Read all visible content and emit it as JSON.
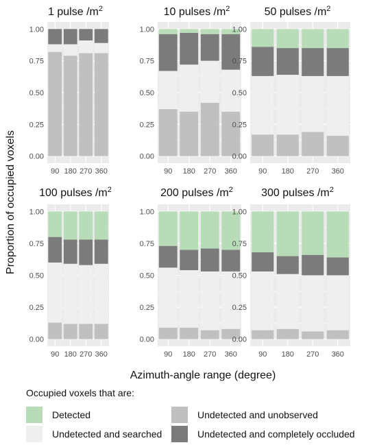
{
  "colors": {
    "detected": "#b8dcb8",
    "searched": "#efefef",
    "unobserved": "#c0c0c0",
    "occluded": "#7b7b7b",
    "panel_background": "#ebebeb",
    "grid": "#ffffff"
  },
  "figure": {
    "ylabel": "Proportion of occupied voxels",
    "xlabel": "Azimuth-angle range (degree)"
  },
  "legend": {
    "title": "Occupied voxels that are:",
    "items": [
      {
        "label": "Detected",
        "color": "#b8dcb8"
      },
      {
        "label": "Undetected and unobserved",
        "color": "#c0c0c0"
      },
      {
        "label": "Undetected and searched",
        "color": "#efefef"
      },
      {
        "label": "Undetected and completely occluded",
        "color": "#7b7b7b"
      }
    ]
  },
  "chart_data": [
    {
      "type": "bar",
      "stacked": true,
      "title": "1 pulse /m",
      "title_sup": "2",
      "categories": [
        "90",
        "180",
        "270",
        "360"
      ],
      "yticks": [
        "0.00",
        "0.25",
        "0.50",
        "0.75",
        "1.00"
      ],
      "ylim": [
        0,
        1
      ],
      "series": [
        {
          "key": "unobserved",
          "values": [
            0.82,
            0.79,
            0.81,
            0.81
          ]
        },
        {
          "key": "searched",
          "values": [
            0.06,
            0.09,
            0.1,
            0.08
          ]
        },
        {
          "key": "occluded",
          "values": [
            0.12,
            0.12,
            0.09,
            0.11
          ]
        },
        {
          "key": "detected",
          "values": [
            0.0,
            0.0,
            0.0,
            0.0
          ]
        }
      ]
    },
    {
      "type": "bar",
      "stacked": true,
      "title": "10 pulses /m",
      "title_sup": "2",
      "categories": [
        "90",
        "180",
        "270",
        "360"
      ],
      "yticks": [
        "0.00",
        "0.25",
        "0.50",
        "0.75",
        "1.00"
      ],
      "ylim": [
        0,
        1
      ],
      "series": [
        {
          "key": "unobserved",
          "values": [
            0.37,
            0.35,
            0.42,
            0.35
          ]
        },
        {
          "key": "searched",
          "values": [
            0.3,
            0.37,
            0.33,
            0.33
          ]
        },
        {
          "key": "occluded",
          "values": [
            0.29,
            0.25,
            0.21,
            0.28
          ]
        },
        {
          "key": "detected",
          "values": [
            0.04,
            0.03,
            0.04,
            0.04
          ]
        }
      ]
    },
    {
      "type": "bar",
      "stacked": true,
      "title": "50 pulses /m",
      "title_sup": "2",
      "categories": [
        "90",
        "180",
        "270",
        "360"
      ],
      "yticks": [
        "0.00",
        "0.25",
        "0.50",
        "0.75",
        "1.00"
      ],
      "ylim": [
        0,
        1
      ],
      "series": [
        {
          "key": "unobserved",
          "values": [
            0.17,
            0.17,
            0.19,
            0.16
          ]
        },
        {
          "key": "searched",
          "values": [
            0.46,
            0.47,
            0.44,
            0.47
          ]
        },
        {
          "key": "occluded",
          "values": [
            0.23,
            0.21,
            0.22,
            0.22
          ]
        },
        {
          "key": "detected",
          "values": [
            0.14,
            0.15,
            0.15,
            0.15
          ]
        }
      ]
    },
    {
      "type": "bar",
      "stacked": true,
      "title": "100 pulses /m",
      "title_sup": "2",
      "categories": [
        "90",
        "180",
        "270",
        "360"
      ],
      "yticks": [
        "0.00",
        "0.25",
        "0.50",
        "0.75",
        "1.00"
      ],
      "ylim": [
        0,
        1
      ],
      "series": [
        {
          "key": "unobserved",
          "values": [
            0.13,
            0.12,
            0.12,
            0.12
          ]
        },
        {
          "key": "searched",
          "values": [
            0.47,
            0.47,
            0.46,
            0.47
          ]
        },
        {
          "key": "occluded",
          "values": [
            0.2,
            0.19,
            0.2,
            0.19
          ]
        },
        {
          "key": "detected",
          "values": [
            0.2,
            0.22,
            0.22,
            0.22
          ]
        }
      ]
    },
    {
      "type": "bar",
      "stacked": true,
      "title": "200 pulses /m",
      "title_sup": "2",
      "categories": [
        "90",
        "180",
        "270",
        "360"
      ],
      "yticks": [
        "0.00",
        "0.25",
        "0.50",
        "0.75",
        "1.00"
      ],
      "ylim": [
        0,
        1
      ],
      "series": [
        {
          "key": "unobserved",
          "values": [
            0.09,
            0.09,
            0.07,
            0.08
          ]
        },
        {
          "key": "searched",
          "values": [
            0.47,
            0.45,
            0.46,
            0.45
          ]
        },
        {
          "key": "occluded",
          "values": [
            0.17,
            0.16,
            0.18,
            0.17
          ]
        },
        {
          "key": "detected",
          "values": [
            0.27,
            0.3,
            0.29,
            0.3
          ]
        }
      ]
    },
    {
      "type": "bar",
      "stacked": true,
      "title": "300 pulses /m",
      "title_sup": "2",
      "categories": [
        "90",
        "180",
        "270",
        "360"
      ],
      "yticks": [
        "0.00",
        "0.25",
        "0.50",
        "0.75",
        "1.00"
      ],
      "ylim": [
        0,
        1
      ],
      "series": [
        {
          "key": "unobserved",
          "values": [
            0.07,
            0.08,
            0.06,
            0.07
          ]
        },
        {
          "key": "searched",
          "values": [
            0.46,
            0.43,
            0.44,
            0.43
          ]
        },
        {
          "key": "occluded",
          "values": [
            0.15,
            0.14,
            0.16,
            0.14
          ]
        },
        {
          "key": "detected",
          "values": [
            0.32,
            0.35,
            0.34,
            0.36
          ]
        }
      ]
    }
  ]
}
